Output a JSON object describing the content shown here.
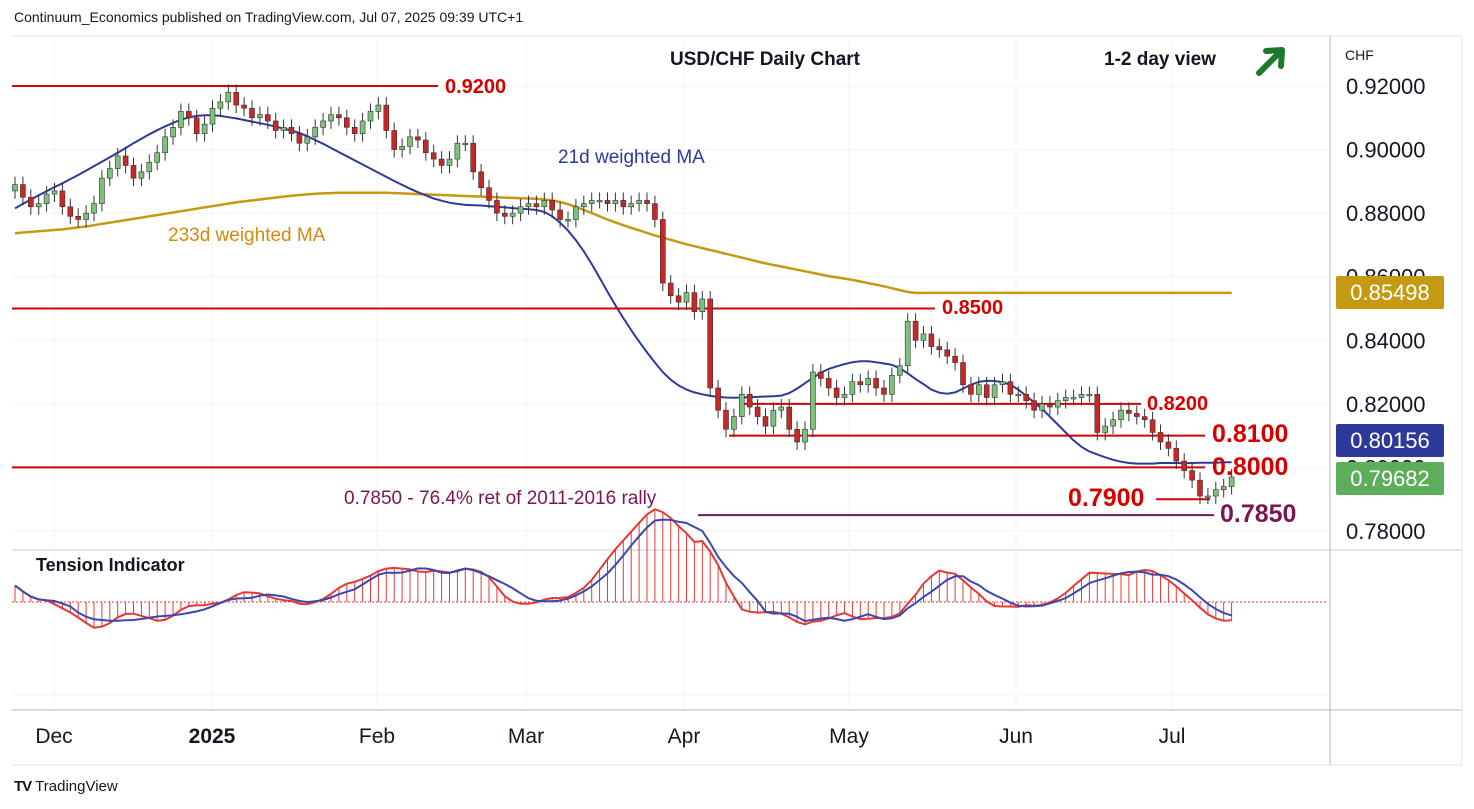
{
  "header": {
    "published": "Continuum_Economics published on TradingView.com, Jul 07, 2025 09:39 UTC+1"
  },
  "chart": {
    "title": "USD/CHF Daily Chart",
    "view_label": "1-2 day view",
    "currency": "CHF",
    "colors": {
      "bull": "#7cc27a",
      "bear": "#c62828",
      "resistance": "#d50000",
      "ma21": "#2e3a9a",
      "ma233": "#c49a12",
      "fib": "#7b1650",
      "tension_red": "#e53935",
      "tension_blue": "#3949ab",
      "arrow": "#1b7a2c"
    },
    "ma21_label": "21d weighted MA",
    "ma233_label": "233d weighted MA",
    "fib_label": "0.7850 - 76.4% ret of 2011-2016 rally",
    "levels": [
      {
        "label": "0.9200",
        "value": 0.92
      },
      {
        "label": "0.8500",
        "value": 0.85
      },
      {
        "label": "0.8200",
        "value": 0.82
      },
      {
        "label": "0.8100",
        "value": 0.81
      },
      {
        "label": "0.8000",
        "value": 0.8
      },
      {
        "label": "0.7900",
        "value": 0.79
      },
      {
        "label": "0.7850",
        "value": 0.785
      }
    ],
    "price_badges": [
      {
        "value": "0.85498",
        "color": "#c49a12"
      },
      {
        "value": "0.80156",
        "color": "#2e3a9a"
      },
      {
        "value": "0.79682",
        "color": "#5cae5a"
      }
    ],
    "tension_label": "Tension Indicator",
    "arrow_icon": "up-right-arrow-icon"
  },
  "chart_data": {
    "type": "candlestick",
    "title": "USD/CHF Daily Chart",
    "y_unit": "CHF",
    "y_ticks": [
      "0.92000",
      "0.90000",
      "0.88000",
      "0.86000",
      "0.84000",
      "0.82000",
      "0.80000",
      "0.78000"
    ],
    "ylim": [
      0.776,
      0.93
    ],
    "x_ticks": [
      "Dec",
      "2025",
      "Feb",
      "Mar",
      "Apr",
      "May",
      "Jun",
      "Jul"
    ],
    "close_series": [
      0.889,
      0.885,
      0.882,
      0.883,
      0.886,
      0.887,
      0.882,
      0.879,
      0.878,
      0.88,
      0.883,
      0.891,
      0.894,
      0.898,
      0.895,
      0.891,
      0.893,
      0.896,
      0.899,
      0.904,
      0.907,
      0.912,
      0.91,
      0.905,
      0.908,
      0.913,
      0.915,
      0.918,
      0.914,
      0.913,
      0.91,
      0.911,
      0.909,
      0.906,
      0.907,
      0.905,
      0.902,
      0.904,
      0.907,
      0.909,
      0.911,
      0.91,
      0.907,
      0.905,
      0.909,
      0.912,
      0.914,
      0.906,
      0.9,
      0.901,
      0.904,
      0.903,
      0.899,
      0.897,
      0.895,
      0.897,
      0.902,
      0.902,
      0.893,
      0.888,
      0.884,
      0.88,
      0.879,
      0.88,
      0.882,
      0.883,
      0.882,
      0.884,
      0.881,
      0.878,
      0.878,
      0.882,
      0.883,
      0.884,
      0.884,
      0.883,
      0.884,
      0.882,
      0.883,
      0.884,
      0.883,
      0.878,
      0.858,
      0.854,
      0.852,
      0.855,
      0.849,
      0.853,
      0.825,
      0.818,
      0.812,
      0.816,
      0.823,
      0.819,
      0.816,
      0.813,
      0.818,
      0.819,
      0.812,
      0.808,
      0.812,
      0.83,
      0.828,
      0.825,
      0.822,
      0.823,
      0.827,
      0.826,
      0.828,
      0.825,
      0.823,
      0.829,
      0.832,
      0.846,
      0.84,
      0.842,
      0.838,
      0.837,
      0.835,
      0.833,
      0.826,
      0.823,
      0.826,
      0.822,
      0.826,
      0.827,
      0.823,
      0.823,
      0.821,
      0.818,
      0.82,
      0.819,
      0.821,
      0.822,
      0.822,
      0.823,
      0.823,
      0.811,
      0.813,
      0.815,
      0.818,
      0.817,
      0.816,
      0.815,
      0.811,
      0.808,
      0.806,
      0.802,
      0.799,
      0.796,
      0.791,
      0.791,
      0.793,
      0.794,
      0.797
    ],
    "series": [
      {
        "name": "21d weighted MA",
        "values": [
          0.8815,
          0.8829,
          0.8843,
          0.8856,
          0.8869,
          0.8882,
          0.8894,
          0.8907,
          0.892,
          0.8934,
          0.8948,
          0.8962,
          0.8976,
          0.899,
          0.9005,
          0.902,
          0.9034,
          0.9048,
          0.9061,
          0.9073,
          0.9084,
          0.9094,
          0.9101,
          0.9106,
          0.9108,
          0.9108,
          0.9106,
          0.9102,
          0.9098,
          0.9093,
          0.9088,
          0.9083,
          0.9078,
          0.9072,
          0.9066,
          0.906,
          0.9052,
          0.9042,
          0.903,
          0.9018,
          0.9005,
          0.8992,
          0.8979,
          0.8966,
          0.8953,
          0.894,
          0.8927,
          0.8914,
          0.8901,
          0.8889,
          0.8877,
          0.8866,
          0.8856,
          0.8846,
          0.8839,
          0.8833,
          0.8829,
          0.8826,
          0.8825,
          0.8824,
          0.8822,
          0.882,
          0.8818,
          0.8816,
          0.8814,
          0.8812,
          0.881,
          0.8804,
          0.879,
          0.877,
          0.8745,
          0.8715,
          0.868,
          0.864,
          0.8597,
          0.8553,
          0.851,
          0.847,
          0.8432,
          0.8396,
          0.8362,
          0.833,
          0.83,
          0.8276,
          0.8258,
          0.8245,
          0.8236,
          0.823,
          0.8225,
          0.8222,
          0.822,
          0.8219,
          0.822,
          0.8221,
          0.8222,
          0.8223,
          0.8224,
          0.8226,
          0.8234,
          0.8248,
          0.8265,
          0.8282,
          0.8298,
          0.831,
          0.8318,
          0.8325,
          0.8331,
          0.8334,
          0.8334,
          0.8331,
          0.8327,
          0.8323,
          0.8312,
          0.8296,
          0.8278,
          0.8262,
          0.8245,
          0.8235,
          0.8232,
          0.8236,
          0.8248,
          0.826,
          0.8269,
          0.8273,
          0.8272,
          0.8268,
          0.826,
          0.8245,
          0.8225,
          0.8205,
          0.8184,
          0.816,
          0.8135,
          0.811,
          0.8085,
          0.8065,
          0.805,
          0.8041,
          0.8032,
          0.8024,
          0.8018,
          0.8014,
          0.8012,
          0.8012,
          0.8012,
          0.8014,
          0.8014,
          0.8014,
          0.8013,
          0.8014,
          0.8015,
          0.8015,
          0.8015,
          0.8016,
          0.8016
        ]
      },
      {
        "name": "233d weighted MA",
        "values": [
          0.8737,
          0.8739,
          0.8741,
          0.8743,
          0.8745,
          0.8747,
          0.8749,
          0.8752,
          0.8755,
          0.8758,
          0.8762,
          0.8766,
          0.877,
          0.8774,
          0.8778,
          0.8782,
          0.8786,
          0.879,
          0.8794,
          0.8798,
          0.8802,
          0.8806,
          0.881,
          0.8814,
          0.8818,
          0.8822,
          0.8826,
          0.883,
          0.8834,
          0.8837,
          0.884,
          0.8843,
          0.8846,
          0.8849,
          0.8852,
          0.8855,
          0.8857,
          0.8859,
          0.8861,
          0.8862,
          0.8863,
          0.8864,
          0.8864,
          0.8864,
          0.8864,
          0.8864,
          0.8864,
          0.8864,
          0.8863,
          0.8862,
          0.8861,
          0.886,
          0.8859,
          0.8858,
          0.8857,
          0.8856,
          0.8855,
          0.8854,
          0.8853,
          0.8852,
          0.8851,
          0.885,
          0.8849,
          0.8848,
          0.8847,
          0.8846,
          0.8845,
          0.8843,
          0.884,
          0.8835,
          0.8828,
          0.882,
          0.881,
          0.88,
          0.879,
          0.878,
          0.8771,
          0.8762,
          0.8754,
          0.8746,
          0.8738,
          0.873,
          0.8723,
          0.8716,
          0.8709,
          0.8702,
          0.8696,
          0.869,
          0.8684,
          0.8678,
          0.8672,
          0.8666,
          0.866,
          0.8654,
          0.8648,
          0.8642,
          0.8637,
          0.8632,
          0.8627,
          0.8622,
          0.8617,
          0.8612,
          0.8607,
          0.8602,
          0.8598,
          0.8594,
          0.859,
          0.8585,
          0.858,
          0.8575,
          0.857,
          0.8564,
          0.8558,
          0.8552,
          0.8549,
          0.8549,
          0.8549,
          0.8549,
          0.8549,
          0.8549,
          0.8549,
          0.8549,
          0.8549,
          0.8549,
          0.8549,
          0.8549,
          0.8549,
          0.8549,
          0.8549,
          0.8549,
          0.8549,
          0.8549,
          0.8549,
          0.8549,
          0.8549,
          0.8549,
          0.8549,
          0.8549,
          0.8549,
          0.8549,
          0.8549,
          0.8549,
          0.8549,
          0.8549,
          0.8549,
          0.8549,
          0.8549,
          0.8549,
          0.8549,
          0.8549,
          0.8549,
          0.8549,
          0.8549,
          0.8549,
          0.8549
        ]
      }
    ],
    "last_values": {
      "close": 0.79682,
      "ma21": 0.80156,
      "ma233": 0.85498
    },
    "grid": true,
    "indicator": "Tension Indicator"
  }
}
